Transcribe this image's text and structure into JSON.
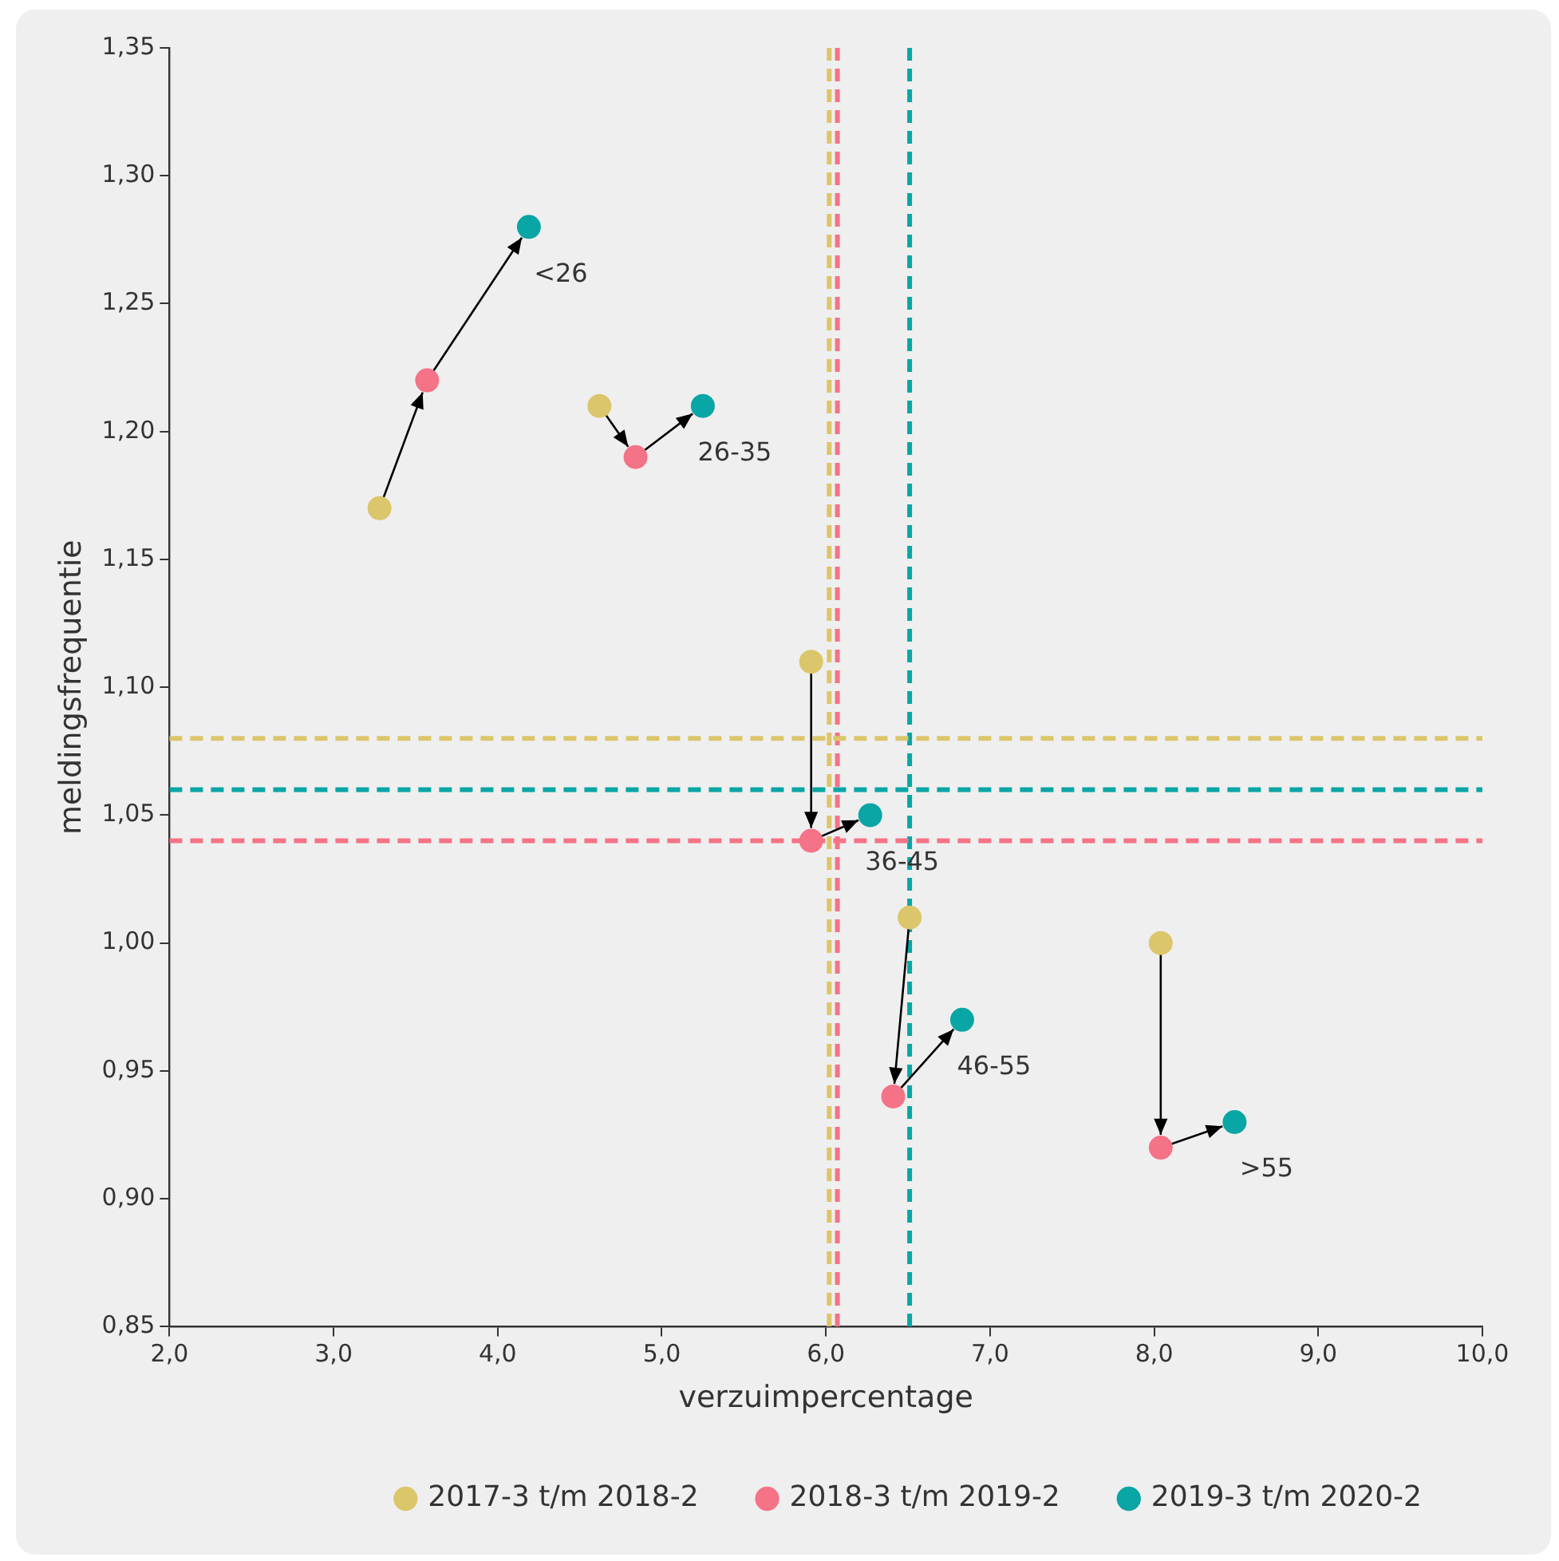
{
  "chart_data": {
    "type": "scatter",
    "xlabel": "verzuimpercentage",
    "ylabel": "meldingsfrequentie",
    "xlim": [
      2.0,
      10.0
    ],
    "xticks": [
      {
        "value": 2,
        "label": "2,0"
      },
      {
        "value": 3,
        "label": "3,0"
      },
      {
        "value": 4,
        "label": "4,0"
      },
      {
        "value": 5,
        "label": "5,0"
      },
      {
        "value": 6,
        "label": "6,0"
      },
      {
        "value": 7,
        "label": "7,0"
      },
      {
        "value": 8,
        "label": "8,0"
      },
      {
        "value": 9,
        "label": "9,0"
      },
      {
        "value": 10,
        "label": "10,0"
      }
    ],
    "ylim": [
      0.85,
      1.35
    ],
    "yticks": [
      {
        "value": 0.85,
        "label": "0,85"
      },
      {
        "value": 0.9,
        "label": "0,90"
      },
      {
        "value": 0.95,
        "label": "0,95"
      },
      {
        "value": 1.0,
        "label": "1,00"
      },
      {
        "value": 1.05,
        "label": "1,05"
      },
      {
        "value": 1.1,
        "label": "1,10"
      },
      {
        "value": 1.15,
        "label": "1,15"
      },
      {
        "value": 1.2,
        "label": "1,20"
      },
      {
        "value": 1.25,
        "label": "1,25"
      },
      {
        "value": 1.3,
        "label": "1,30"
      },
      {
        "value": 1.35,
        "label": "1,35"
      }
    ],
    "series": [
      {
        "name": "2017-3 t/m 2018-2",
        "color": "#dcc66b",
        "x": [
          3.28,
          4.62,
          5.91,
          6.51,
          8.04
        ],
        "values": [
          1.17,
          1.21,
          1.11,
          1.01,
          1.0
        ]
      },
      {
        "name": "2018-3 t/m 2019-2",
        "color": "#f47386",
        "x": [
          3.57,
          4.84,
          5.91,
          6.41,
          8.04
        ],
        "values": [
          1.22,
          1.19,
          1.04,
          0.94,
          0.92
        ]
      },
      {
        "name": "2019-3 t/m 2020-2",
        "color": "#0aa5a5",
        "x": [
          4.19,
          5.25,
          6.27,
          6.83,
          8.49
        ],
        "values": [
          1.28,
          1.21,
          1.05,
          0.97,
          0.93
        ]
      }
    ],
    "ref_lines": [
      {
        "axis": "x",
        "value": 6.02,
        "color": "#dcc66b",
        "line_style": "dashed"
      },
      {
        "axis": "x",
        "value": 6.07,
        "color": "#f47386",
        "line_style": "dashed"
      },
      {
        "axis": "x",
        "value": 6.51,
        "color": "#0aa5a5",
        "line_style": "dashed"
      },
      {
        "axis": "y",
        "value": 1.08,
        "color": "#dcc66b",
        "line_style": "dashed"
      },
      {
        "axis": "y",
        "value": 1.06,
        "color": "#0aa5a5",
        "line_style": "dashed"
      },
      {
        "axis": "y",
        "value": 1.04,
        "color": "#f47386",
        "line_style": "dashed"
      }
    ],
    "annotations": [
      "<26",
      "26-35",
      "36-45",
      "46-55",
      ">55"
    ],
    "grid": false,
    "legend": "bottom",
    "marker": "circle"
  }
}
